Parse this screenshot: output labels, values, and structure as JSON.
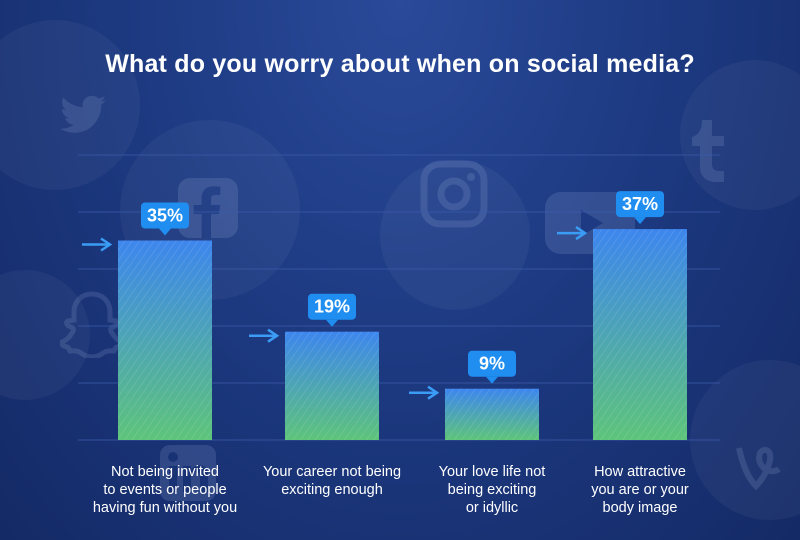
{
  "chart_data": {
    "type": "bar",
    "title": "What do you worry about when on social media?",
    "categories": [
      "Not being invited to events or people having fun without you",
      "Your career not being exciting enough",
      "Your love life not being exciting or idyllic",
      "How attractive you are or your body image"
    ],
    "category_lines": [
      [
        "Not being invited",
        "to events or people",
        "having fun without you"
      ],
      [
        "Your career not being",
        "exciting enough"
      ],
      [
        "Your love life not",
        "being exciting",
        "or idyllic"
      ],
      [
        "How attractive",
        "you are or your",
        "body image"
      ]
    ],
    "values": [
      35,
      19,
      9,
      37
    ],
    "data_labels": [
      "35%",
      "19%",
      "9%",
      "37%"
    ],
    "ylim": [
      0,
      50
    ],
    "grid": true,
    "colors": {
      "background": "#1d3a82",
      "bar_top": "#3d86ee",
      "bar_bottom": "#5dc47a",
      "label_box": "#1f8ef0",
      "arrow": "#3a9cf5",
      "grid": "#3a5aa8"
    }
  },
  "background_icons": [
    "twitter-icon",
    "facebook-icon",
    "instagram-icon",
    "youtube-icon",
    "tumblr-icon",
    "snapchat-icon",
    "linkedin-icon",
    "vine-icon"
  ]
}
